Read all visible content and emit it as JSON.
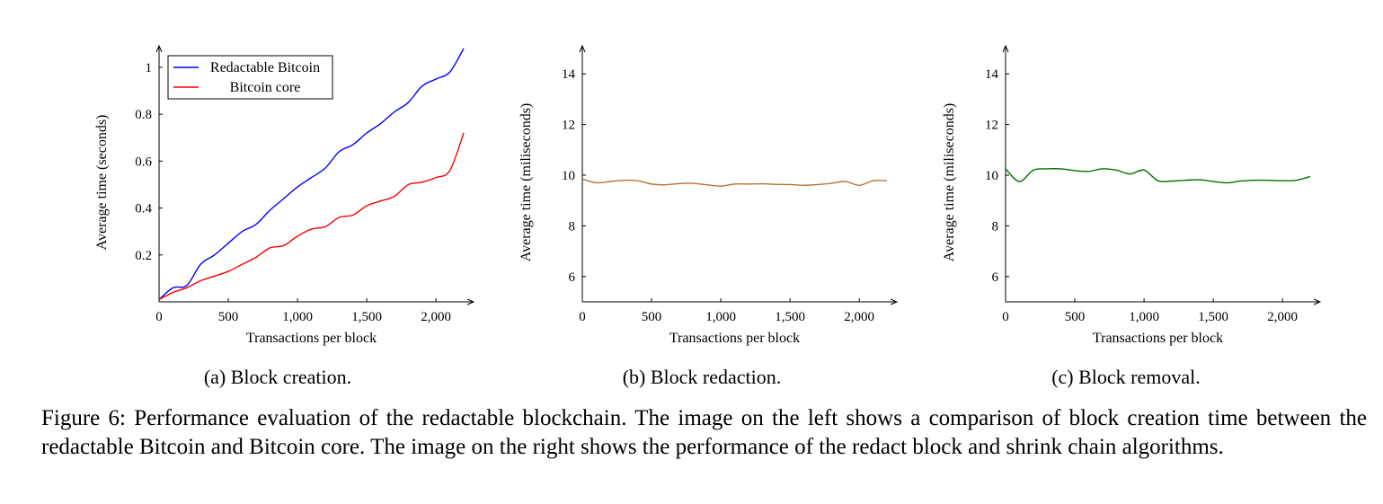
{
  "chart_data": [
    {
      "type": "line",
      "xlabel": "Transactions per block",
      "ylabel": "Average time (seconds)",
      "xlim": [
        0,
        2200
      ],
      "ylim": [
        0,
        1.08
      ],
      "xticks": [
        0,
        500,
        1000,
        1500,
        2000
      ],
      "xtick_labels": [
        "0",
        "500",
        "1,000",
        "1,500",
        "2,000"
      ],
      "yticks": [
        0.2,
        0.4,
        0.6,
        0.8,
        1
      ],
      "ytick_labels": [
        "0.2",
        "0.4",
        "0.6",
        "0.8",
        "1"
      ],
      "grid": false,
      "legend": "top-left",
      "caption": "(a) Block creation.",
      "series": [
        {
          "name": "Redactable Bitcoin",
          "color": "#0000ff",
          "x": [
            0,
            100,
            200,
            300,
            400,
            500,
            600,
            700,
            800,
            900,
            1000,
            1100,
            1200,
            1300,
            1400,
            1500,
            1600,
            1700,
            1800,
            1900,
            2000,
            2100,
            2200
          ],
          "y": [
            0.01,
            0.06,
            0.07,
            0.16,
            0.2,
            0.25,
            0.3,
            0.33,
            0.39,
            0.44,
            0.49,
            0.53,
            0.57,
            0.64,
            0.67,
            0.72,
            0.76,
            0.81,
            0.85,
            0.92,
            0.95,
            0.98,
            1.08
          ]
        },
        {
          "name": "Bitcoin core",
          "color": "#ff0000",
          "x": [
            0,
            100,
            200,
            300,
            400,
            500,
            600,
            700,
            800,
            900,
            1000,
            1100,
            1200,
            1300,
            1400,
            1500,
            1600,
            1700,
            1800,
            1900,
            2000,
            2100,
            2200
          ],
          "y": [
            0.01,
            0.04,
            0.06,
            0.09,
            0.11,
            0.13,
            0.16,
            0.19,
            0.23,
            0.24,
            0.28,
            0.31,
            0.32,
            0.36,
            0.37,
            0.41,
            0.43,
            0.45,
            0.5,
            0.51,
            0.53,
            0.56,
            0.72
          ]
        }
      ]
    },
    {
      "type": "line",
      "xlabel": "Transactions per block",
      "ylabel": "Average time (miliseconds)",
      "xlim": [
        0,
        2200
      ],
      "ylim": [
        5,
        15
      ],
      "xticks": [
        0,
        500,
        1000,
        1500,
        2000
      ],
      "xtick_labels": [
        "0",
        "500",
        "1,000",
        "1,500",
        "2,000"
      ],
      "yticks": [
        6,
        8,
        10,
        12,
        14
      ],
      "ytick_labels": [
        "6",
        "8",
        "10",
        "12",
        "14"
      ],
      "grid": false,
      "caption": "(b) Block redaction.",
      "series": [
        {
          "color": "#b87333",
          "x": [
            0,
            100,
            200,
            300,
            400,
            500,
            600,
            700,
            800,
            900,
            1000,
            1100,
            1200,
            1300,
            1400,
            1500,
            1600,
            1700,
            1800,
            1900,
            2000,
            2100,
            2200
          ],
          "y": [
            9.85,
            9.7,
            9.75,
            9.8,
            9.78,
            9.65,
            9.62,
            9.67,
            9.68,
            9.62,
            9.57,
            9.65,
            9.65,
            9.66,
            9.64,
            9.63,
            9.6,
            9.63,
            9.68,
            9.75,
            9.6,
            9.78,
            9.78
          ]
        }
      ]
    },
    {
      "type": "line",
      "xlabel": "Transactions per block",
      "ylabel": "Average time (miliseconds)",
      "xlim": [
        0,
        2200
      ],
      "ylim": [
        5,
        15
      ],
      "xticks": [
        0,
        500,
        1000,
        1500,
        2000
      ],
      "xtick_labels": [
        "0",
        "500",
        "1,000",
        "1,500",
        "2,000"
      ],
      "yticks": [
        6,
        8,
        10,
        12,
        14
      ],
      "ytick_labels": [
        "6",
        "8",
        "10",
        "12",
        "14"
      ],
      "grid": false,
      "caption": "(c) Block removal.",
      "series": [
        {
          "color": "#007000",
          "x": [
            0,
            100,
            200,
            300,
            400,
            500,
            600,
            700,
            800,
            900,
            1000,
            1100,
            1200,
            1300,
            1400,
            1500,
            1600,
            1700,
            1800,
            1900,
            2000,
            2100,
            2200
          ],
          "y": [
            10.25,
            9.75,
            10.2,
            10.25,
            10.25,
            10.18,
            10.15,
            10.25,
            10.2,
            10.05,
            10.2,
            9.78,
            9.77,
            9.8,
            9.82,
            9.75,
            9.7,
            9.77,
            9.8,
            9.8,
            9.78,
            9.8,
            9.95
          ]
        }
      ]
    }
  ],
  "figure_caption": "Figure 6: Performance evaluation of the redactable blockchain. The image on the left shows a comparison of block creation time between the redactable Bitcoin and Bitcoin core. The image on the right shows the performance of the redact block and shrink chain algorithms."
}
